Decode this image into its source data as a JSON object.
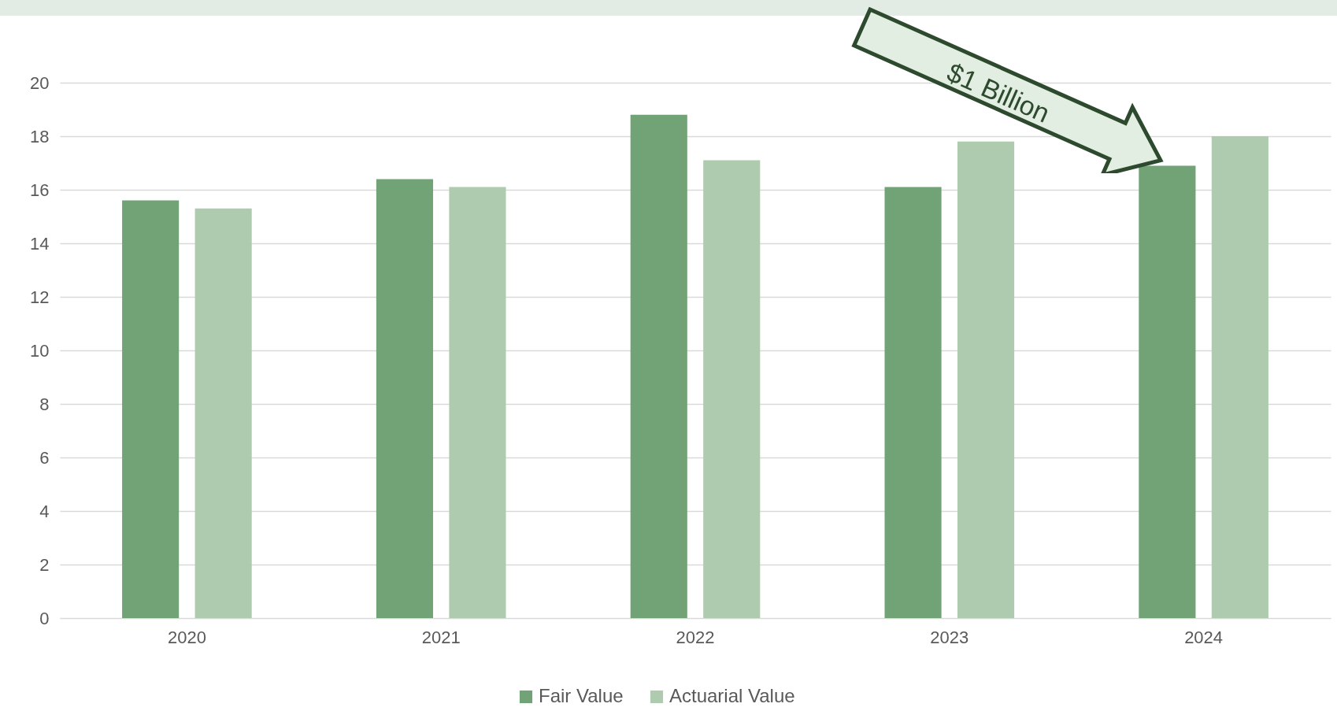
{
  "chart_data": {
    "type": "bar",
    "categories": [
      "2020",
      "2021",
      "2022",
      "2023",
      "2024"
    ],
    "series": [
      {
        "name": "Fair Value",
        "color": "#71a376",
        "values": [
          15.6,
          16.4,
          18.8,
          16.1,
          16.9
        ]
      },
      {
        "name": "Actuarial Value",
        "color": "#afcbaf",
        "values": [
          15.3,
          16.1,
          17.1,
          17.8,
          18.0
        ]
      }
    ],
    "ylim": [
      0,
      20
    ],
    "yticks": [
      0,
      2,
      4,
      6,
      8,
      10,
      12,
      14,
      16,
      18,
      20
    ],
    "grid": "y",
    "legend": "bottom",
    "annotations": [
      "$1 Billion"
    ]
  }
}
